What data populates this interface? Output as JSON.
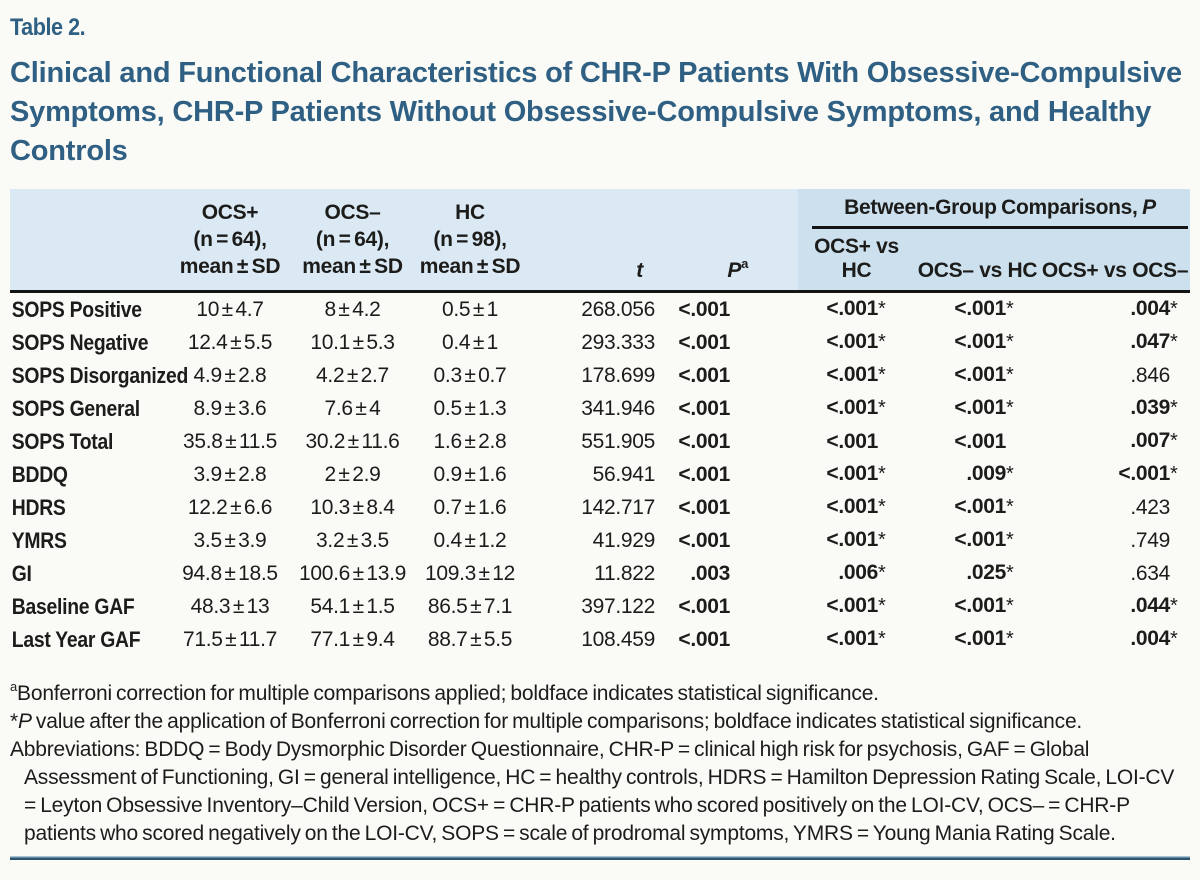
{
  "colors": {
    "title": "#2f6083",
    "header_bg": "#dbe9f4",
    "spanner_bg": "#cde0ee",
    "rule_light": "#a6c3d6",
    "rule_dark": "#2e5570",
    "text": "#1c1c1a"
  },
  "header": {
    "table_label": "Table 2.",
    "title": "Clinical and Functional Characteristics of CHR-P Patients With Obsessive-Compulsive Symptoms, CHR-P Patients Without Obsessive-Compulsive Symptoms, and Healthy Controls"
  },
  "table": {
    "group_columns": [
      {
        "name": "OCS+",
        "n": "(n = 64),",
        "stat": "mean ± SD"
      },
      {
        "name": "OCS–",
        "n": "(n = 64),",
        "stat": "mean ± SD"
      },
      {
        "name": "HC",
        "n": "(n = 98),",
        "stat": "mean ± SD"
      }
    ],
    "t_label": "t",
    "p_label": "P",
    "p_sup": "a",
    "spanner": {
      "title_prefix": "Between-Group Comparisons, ",
      "title_italic": "P",
      "columns": [
        "OCS+ vs HC",
        "OCS– vs HC",
        "OCS+ vs OCS–"
      ]
    },
    "rows": [
      {
        "label": "SOPS Positive",
        "means": [
          "10 ± 4.7",
          "8 ± 4.2",
          "0.5 ± 1"
        ],
        "t": "268.056",
        "p": {
          "text": "<.001",
          "bold": true
        },
        "cmp": [
          {
            "text": "<.001",
            "star": true,
            "bold": true
          },
          {
            "text": "<.001",
            "star": true,
            "bold": true
          },
          {
            "text": ".004",
            "star": true,
            "bold": true
          }
        ]
      },
      {
        "label": "SOPS Negative",
        "means": [
          "12.4 ± 5.5",
          "10.1 ± 5.3",
          "0.4 ± 1"
        ],
        "t": "293.333",
        "p": {
          "text": "<.001",
          "bold": true
        },
        "cmp": [
          {
            "text": "<.001",
            "star": true,
            "bold": true
          },
          {
            "text": "<.001",
            "star": true,
            "bold": true
          },
          {
            "text": ".047",
            "star": true,
            "bold": true
          }
        ]
      },
      {
        "label": "SOPS Disorganized",
        "means": [
          "4.9 ± 2.8",
          "4.2 ± 2.7",
          "0.3 ± 0.7"
        ],
        "t": "178.699",
        "p": {
          "text": "<.001",
          "bold": true
        },
        "cmp": [
          {
            "text": "<.001",
            "star": true,
            "bold": true
          },
          {
            "text": "<.001",
            "star": true,
            "bold": true
          },
          {
            "text": ".846",
            "star": false,
            "bold": false
          }
        ]
      },
      {
        "label": "SOPS General",
        "means": [
          "8.9 ± 3.6",
          "7.6 ± 4",
          "0.5 ± 1.3"
        ],
        "t": "341.946",
        "p": {
          "text": "<.001",
          "bold": true
        },
        "cmp": [
          {
            "text": "<.001",
            "star": true,
            "bold": true
          },
          {
            "text": "<.001",
            "star": true,
            "bold": true
          },
          {
            "text": ".039",
            "star": true,
            "bold": true
          }
        ]
      },
      {
        "label": "SOPS Total",
        "means": [
          "35.8 ± 11.5",
          "30.2 ± 11.6",
          "1.6 ± 2.8"
        ],
        "t": "551.905",
        "p": {
          "text": "<.001",
          "bold": true
        },
        "cmp": [
          {
            "text": "<.001",
            "star": false,
            "bold": true
          },
          {
            "text": "<.001",
            "star": false,
            "bold": true
          },
          {
            "text": ".007",
            "star": true,
            "bold": true
          }
        ]
      },
      {
        "label": "BDDQ",
        "means": [
          "3.9 ± 2.8",
          "2 ± 2.9",
          "0.9 ± 1.6"
        ],
        "t": "56.941",
        "p": {
          "text": "<.001",
          "bold": true
        },
        "cmp": [
          {
            "text": "<.001",
            "star": true,
            "bold": true
          },
          {
            "text": ".009",
            "star": true,
            "bold": true
          },
          {
            "text": "<.001",
            "star": true,
            "bold": true
          }
        ]
      },
      {
        "label": "HDRS",
        "means": [
          "12.2 ± 6.6",
          "10.3 ± 8.4",
          "0.7 ± 1.6"
        ],
        "t": "142.717",
        "p": {
          "text": "<.001",
          "bold": true
        },
        "cmp": [
          {
            "text": "<.001",
            "star": true,
            "bold": true
          },
          {
            "text": "<.001",
            "star": true,
            "bold": true
          },
          {
            "text": ".423",
            "star": false,
            "bold": false
          }
        ]
      },
      {
        "label": "YMRS",
        "means": [
          "3.5 ± 3.9",
          "3.2 ± 3.5",
          "0.4 ± 1.2"
        ],
        "t": "41.929",
        "p": {
          "text": "<.001",
          "bold": true
        },
        "cmp": [
          {
            "text": "<.001",
            "star": true,
            "bold": true
          },
          {
            "text": "<.001",
            "star": true,
            "bold": true
          },
          {
            "text": ".749",
            "star": false,
            "bold": false
          }
        ]
      },
      {
        "label": "GI",
        "means": [
          "94.8 ± 18.5",
          "100.6 ± 13.9",
          "109.3 ± 12"
        ],
        "t": "11.822",
        "p": {
          "text": ".003",
          "bold": true
        },
        "cmp": [
          {
            "text": ".006",
            "star": true,
            "bold": true
          },
          {
            "text": ".025",
            "star": true,
            "bold": true
          },
          {
            "text": ".634",
            "star": false,
            "bold": false
          }
        ]
      },
      {
        "label": "Baseline GAF",
        "means": [
          "48.3 ± 13",
          "54.1 ± 1.5",
          "86.5 ± 7.1"
        ],
        "t": "397.122",
        "p": {
          "text": "<.001",
          "bold": true
        },
        "cmp": [
          {
            "text": "<.001",
            "star": true,
            "bold": true
          },
          {
            "text": "<.001",
            "star": true,
            "bold": true
          },
          {
            "text": ".044",
            "star": true,
            "bold": true
          }
        ]
      },
      {
        "label": "Last Year GAF",
        "means": [
          "71.5 ± 11.7",
          "77.1 ± 9.4",
          "88.7 ± 5.5"
        ],
        "t": "108.459",
        "p": {
          "text": "<.001",
          "bold": true
        },
        "cmp": [
          {
            "text": "<.001",
            "star": true,
            "bold": true
          },
          {
            "text": "<.001",
            "star": true,
            "bold": true
          },
          {
            "text": ".004",
            "star": true,
            "bold": true
          }
        ]
      }
    ]
  },
  "footnotes": {
    "a": {
      "marker": "a",
      "text": "Bonferroni correction for multiple comparisons applied; boldface indicates statistical significance."
    },
    "star": {
      "marker": "*",
      "p": "P",
      "text": " value after the application of Bonferroni correction for multiple comparisons; boldface indicates statistical significance."
    },
    "abbreviations": "Abbreviations: BDDQ = Body Dysmorphic Disorder Questionnaire, CHR-P = clinical high risk for psychosis, GAF = Global Assessment of Functioning, GI = general intelligence, HC = healthy controls, HDRS = Hamilton Depression Rating Scale, LOI-CV = Leyton Obsessive Inventory–Child Version, OCS+ = CHR-P patients who scored positively on the LOI-CV, OCS– = CHR-P patients who scored negatively on the LOI-CV, SOPS = scale of prodromal symptoms, YMRS = Young Mania Rating Scale."
  }
}
